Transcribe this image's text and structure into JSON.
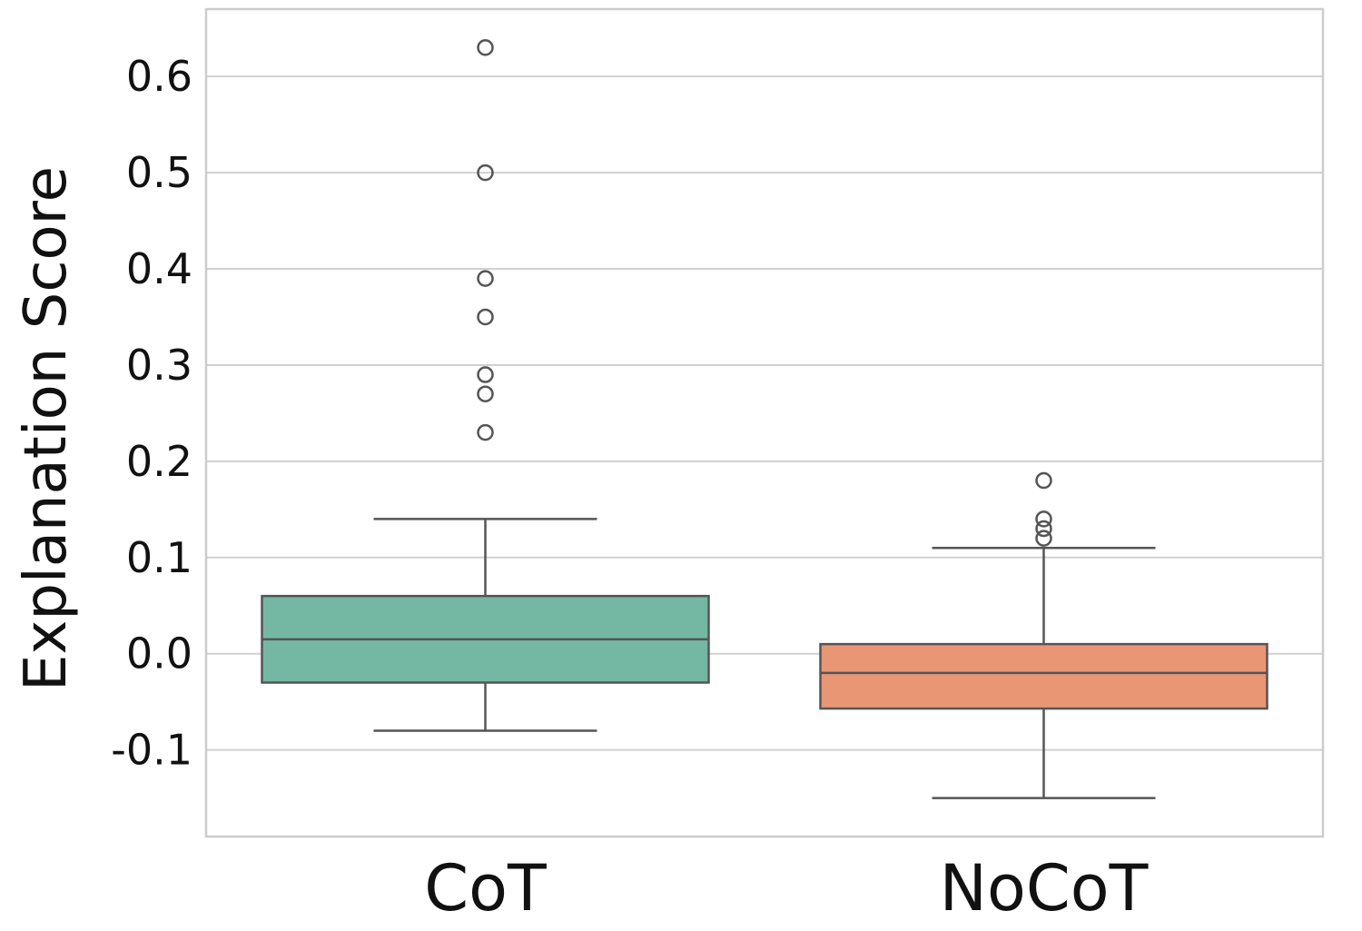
{
  "chart_data": {
    "type": "boxplot",
    "title": "",
    "xlabel": "",
    "ylabel": "Explanation Score",
    "ylim": [
      -0.19,
      0.67
    ],
    "yticks": [
      -0.1,
      0.0,
      0.1,
      0.2,
      0.3,
      0.4,
      0.5,
      0.6
    ],
    "ytick_labels": [
      "-0.1",
      "0.0",
      "0.1",
      "0.2",
      "0.3",
      "0.4",
      "0.5",
      "0.6"
    ],
    "grid": "horizontal",
    "legend": "none",
    "categories": [
      "CoT",
      "NoCoT"
    ],
    "boxes": [
      {
        "category": "CoT",
        "color": "#74b8a3",
        "whisker_low": -0.08,
        "q1": -0.03,
        "median": 0.015,
        "q3": 0.06,
        "whisker_high": 0.14,
        "outliers": [
          0.23,
          0.27,
          0.29,
          0.35,
          0.39,
          0.5,
          0.63
        ]
      },
      {
        "category": "NoCoT",
        "color": "#e99675",
        "whisker_low": -0.15,
        "q1": -0.057,
        "median": -0.02,
        "q3": 0.01,
        "whisker_high": 0.11,
        "outliers": [
          0.12,
          0.13,
          0.14,
          0.18
        ]
      }
    ]
  }
}
